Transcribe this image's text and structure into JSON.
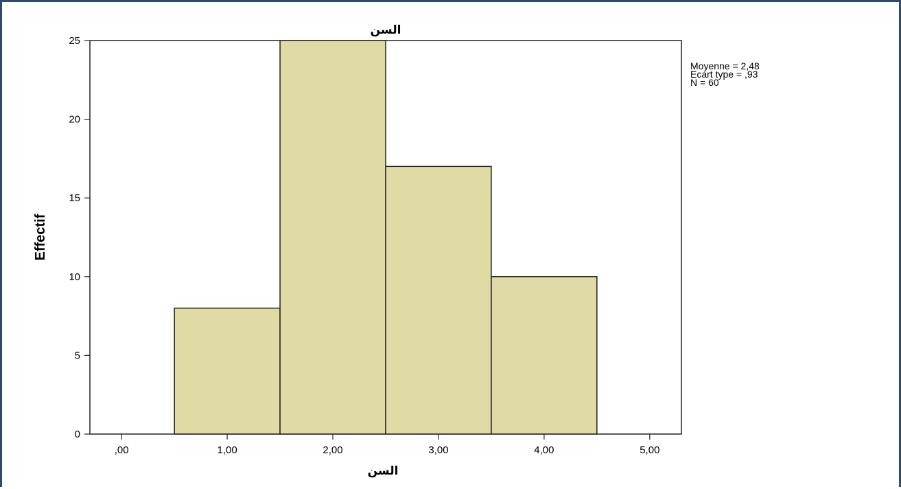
{
  "chart_data": {
    "type": "bar",
    "variant": "histogram",
    "title": "السن",
    "xlabel": "السن",
    "ylabel": "Effectif",
    "x_ticks": [
      ",00",
      "1,00",
      "2,00",
      "3,00",
      "4,00",
      "5,00"
    ],
    "x_tick_values": [
      0,
      1,
      2,
      3,
      4,
      5
    ],
    "y_ticks": [
      "0",
      "5",
      "10",
      "15",
      "20",
      "25"
    ],
    "y_tick_values": [
      0,
      5,
      10,
      15,
      20,
      25
    ],
    "xlim": [
      -0.3,
      5.3
    ],
    "ylim": [
      0,
      25
    ],
    "bins": [
      {
        "center": 1,
        "width": 1,
        "value": 8
      },
      {
        "center": 2,
        "width": 1,
        "value": 25
      },
      {
        "center": 3,
        "width": 1,
        "value": 17
      },
      {
        "center": 4,
        "width": 1,
        "value": 10
      }
    ],
    "stats": [
      "Moyenne = 2,48",
      "Ecart type = ,93",
      "N = 60"
    ],
    "grid": false,
    "bar_color": "#e0daa4",
    "bar_edge_color": "#222222"
  }
}
